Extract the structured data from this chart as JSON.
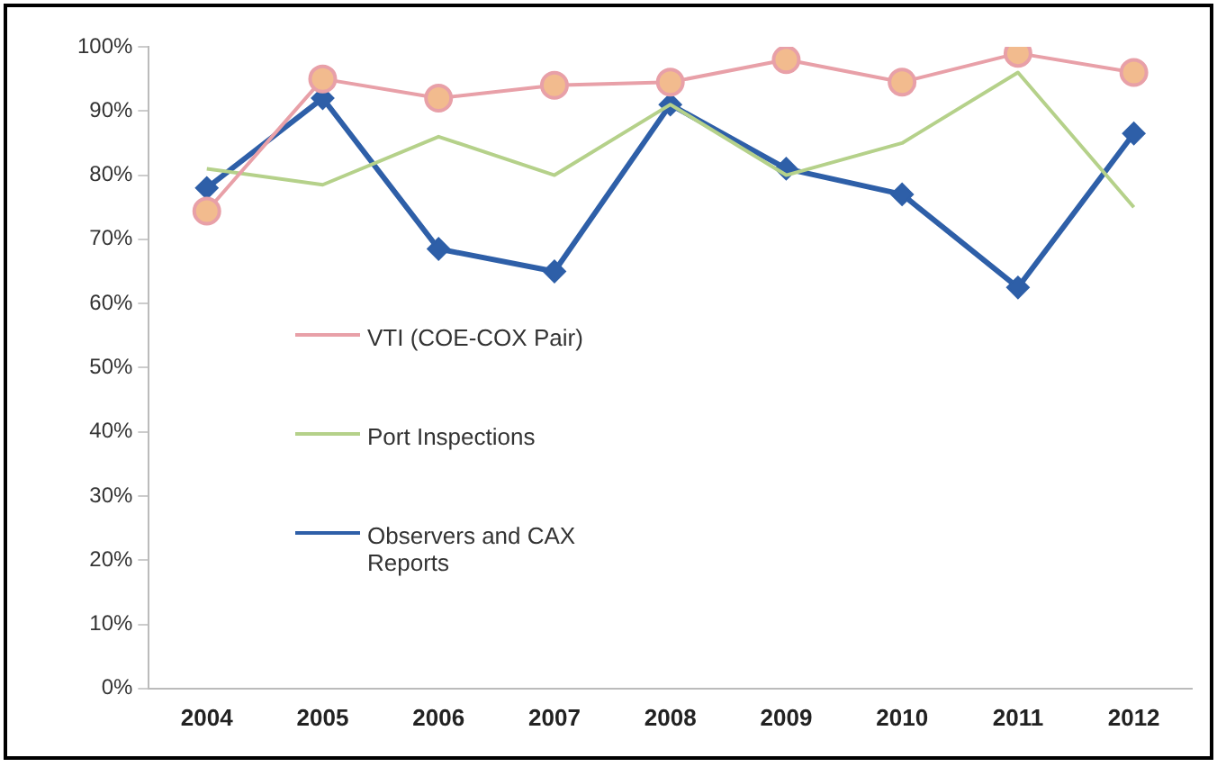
{
  "chart_data": {
    "type": "line",
    "categories": [
      "2004",
      "2005",
      "2006",
      "2007",
      "2008",
      "2009",
      "2010",
      "2011",
      "2012"
    ],
    "ylim": [
      0,
      1
    ],
    "yticks": [
      {
        "value": 0,
        "label": "0%"
      },
      {
        "value": 0.1,
        "label": "10%"
      },
      {
        "value": 0.2,
        "label": "20%"
      },
      {
        "value": 0.3,
        "label": "30%"
      },
      {
        "value": 0.4,
        "label": "40%"
      },
      {
        "value": 0.5,
        "label": "50%"
      },
      {
        "value": 0.6,
        "label": "60%"
      },
      {
        "value": 0.7,
        "label": "70%"
      },
      {
        "value": 0.8,
        "label": "80%"
      },
      {
        "value": 0.9,
        "label": "90%"
      },
      {
        "value": 1,
        "label": "100%"
      }
    ],
    "grid": false,
    "legend": "left",
    "series": [
      {
        "name": "VTI (COE-COX Pair)",
        "color": "#e8a0a8",
        "marker": "circle",
        "values": [
          0.744,
          0.95,
          0.92,
          0.94,
          0.945,
          0.98,
          0.945,
          0.99,
          0.96
        ]
      },
      {
        "name": "Port Inspections",
        "color": "#b5d18a",
        "marker": "none",
        "values": [
          0.81,
          0.785,
          0.86,
          0.8,
          0.91,
          0.8,
          0.85,
          0.96,
          0.75
        ]
      },
      {
        "name": "Observers and CAX Reports",
        "color": "#2e5fa8",
        "marker": "diamond",
        "values": [
          0.78,
          0.92,
          0.685,
          0.65,
          0.91,
          0.81,
          0.77,
          0.625,
          0.865
        ]
      }
    ]
  }
}
